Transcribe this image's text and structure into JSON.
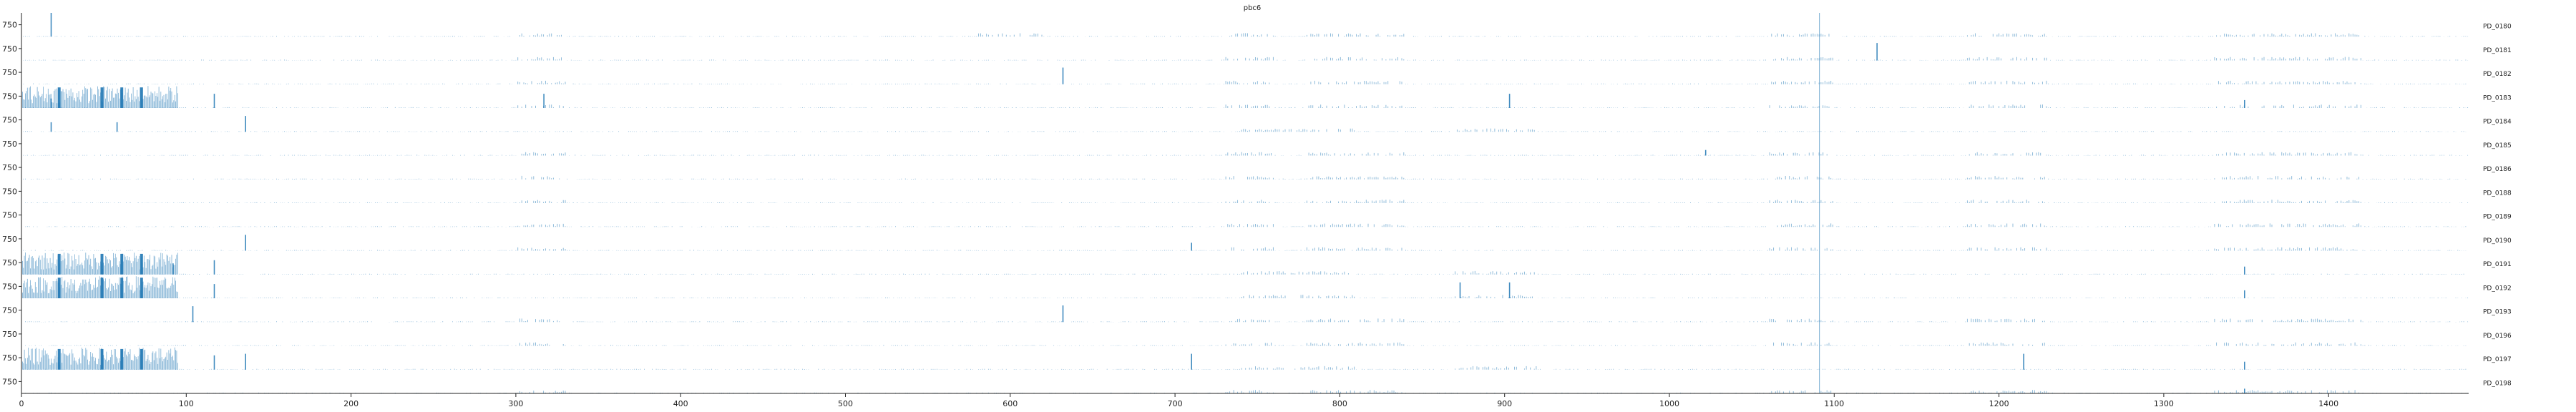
{
  "chart_data": {
    "type": "bar",
    "title": "pbc6",
    "xlabel": "",
    "ylabel": "",
    "xlim": [
      0,
      1485
    ],
    "x_ticks": [
      "0",
      "100",
      "200",
      "300",
      "400",
      "500",
      "600",
      "700",
      "800",
      "900",
      "1000",
      "1100",
      "1200",
      "1300",
      "1400"
    ],
    "y_tick_label": "750",
    "y_tick_value": 750,
    "row_ymax": 1500,
    "grid": false,
    "legend": "none",
    "bar_color": "#1f77b4",
    "reference_line_x": 1091,
    "series": [
      {
        "name": "PD_0180",
        "spikes": [
          [
            18,
            1500
          ]
        ],
        "dense_start": false,
        "blocks": [
          [
            300,
            330
          ],
          [
            580,
            620
          ],
          [
            730,
            760
          ],
          [
            780,
            840
          ],
          [
            1060,
            1100
          ],
          [
            1180,
            1230
          ],
          [
            1330,
            1420
          ]
        ]
      },
      {
        "name": "PD_0181",
        "spikes": [
          [
            1126,
            1100
          ]
        ],
        "dense_start": false,
        "blocks": [
          [
            300,
            330
          ],
          [
            730,
            760
          ],
          [
            780,
            840
          ],
          [
            1060,
            1100
          ],
          [
            1180,
            1230
          ],
          [
            1330,
            1420
          ]
        ]
      },
      {
        "name": "PD_0182",
        "spikes": [
          [
            632,
            1050
          ]
        ],
        "dense_start": false,
        "blocks": [
          [
            300,
            330
          ],
          [
            730,
            760
          ],
          [
            780,
            840
          ],
          [
            1060,
            1100
          ],
          [
            1180,
            1230
          ],
          [
            1330,
            1420
          ]
        ]
      },
      {
        "name": "PD_0183",
        "spikes": [
          [
            18,
            600
          ],
          [
            117,
            900
          ],
          [
            317,
            900
          ],
          [
            903,
            900
          ],
          [
            1349,
            500
          ]
        ],
        "dense_start": true,
        "blocks": [
          [
            300,
            330
          ],
          [
            730,
            760
          ],
          [
            780,
            840
          ],
          [
            1060,
            1100
          ],
          [
            1180,
            1230
          ],
          [
            1330,
            1420
          ]
        ]
      },
      {
        "name": "PD_0184",
        "spikes": [
          [
            136,
            1000
          ],
          [
            18,
            600
          ],
          [
            58,
            600
          ]
        ],
        "dense_start": false,
        "blocks": [
          [
            740,
            810
          ],
          [
            870,
            920
          ]
        ]
      },
      {
        "name": "PD_0185",
        "spikes": [
          [
            1022,
            350
          ]
        ],
        "dense_start": false,
        "blocks": [
          [
            300,
            330
          ],
          [
            730,
            760
          ],
          [
            780,
            840
          ],
          [
            1060,
            1100
          ],
          [
            1180,
            1230
          ],
          [
            1330,
            1420
          ]
        ]
      },
      {
        "name": "PD_0186",
        "spikes": [],
        "dense_start": false,
        "blocks": [
          [
            300,
            330
          ],
          [
            730,
            760
          ],
          [
            780,
            840
          ],
          [
            1060,
            1100
          ],
          [
            1180,
            1230
          ],
          [
            1330,
            1420
          ]
        ]
      },
      {
        "name": "PD_0188",
        "spikes": [],
        "dense_start": false,
        "blocks": [
          [
            300,
            330
          ],
          [
            730,
            760
          ],
          [
            780,
            840
          ],
          [
            1060,
            1100
          ],
          [
            1180,
            1230
          ],
          [
            1330,
            1420
          ]
        ]
      },
      {
        "name": "PD_0189",
        "spikes": [],
        "dense_start": false,
        "blocks": [
          [
            300,
            330
          ],
          [
            730,
            760
          ],
          [
            780,
            840
          ],
          [
            1060,
            1100
          ],
          [
            1180,
            1230
          ],
          [
            1330,
            1420
          ]
        ]
      },
      {
        "name": "PD_0190",
        "spikes": [
          [
            136,
            1000
          ],
          [
            710,
            500
          ]
        ],
        "dense_start": false,
        "blocks": [
          [
            300,
            330
          ],
          [
            730,
            760
          ],
          [
            780,
            840
          ],
          [
            1060,
            1100
          ],
          [
            1180,
            1230
          ],
          [
            1330,
            1420
          ]
        ]
      },
      {
        "name": "PD_0191",
        "spikes": [
          [
            117,
            900
          ],
          [
            92,
            700
          ],
          [
            1349,
            500
          ]
        ],
        "dense_start": true,
        "blocks": [
          [
            740,
            810
          ],
          [
            870,
            920
          ]
        ]
      },
      {
        "name": "PD_0192",
        "spikes": [
          [
            117,
            900
          ],
          [
            873,
            1000
          ],
          [
            903,
            1000
          ],
          [
            1349,
            500
          ]
        ],
        "dense_start": true,
        "blocks": [
          [
            740,
            810
          ],
          [
            870,
            920
          ]
        ]
      },
      {
        "name": "PD_0193",
        "spikes": [
          [
            104,
            1000
          ],
          [
            632,
            1050
          ]
        ],
        "dense_start": false,
        "blocks": [
          [
            300,
            330
          ],
          [
            730,
            760
          ],
          [
            780,
            840
          ],
          [
            1060,
            1100
          ],
          [
            1180,
            1230
          ],
          [
            1330,
            1420
          ]
        ]
      },
      {
        "name": "PD_0196",
        "spikes": [],
        "dense_start": false,
        "blocks": [
          [
            300,
            330
          ],
          [
            730,
            760
          ],
          [
            780,
            840
          ],
          [
            1060,
            1100
          ],
          [
            1180,
            1230
          ],
          [
            1330,
            1420
          ]
        ]
      },
      {
        "name": "PD_0197",
        "spikes": [
          [
            136,
            1000
          ],
          [
            117,
            900
          ],
          [
            710,
            1000
          ],
          [
            1215,
            1000
          ],
          [
            1349,
            500
          ]
        ],
        "dense_start": true,
        "blocks": [
          [
            740,
            810
          ],
          [
            870,
            920
          ]
        ]
      },
      {
        "name": "PD_0198",
        "spikes": [
          [
            1349,
            300
          ]
        ],
        "dense_start": false,
        "blocks": [
          [
            300,
            330
          ],
          [
            730,
            760
          ],
          [
            780,
            840
          ],
          [
            1060,
            1100
          ],
          [
            1180,
            1230
          ],
          [
            1330,
            1420
          ]
        ]
      }
    ]
  }
}
